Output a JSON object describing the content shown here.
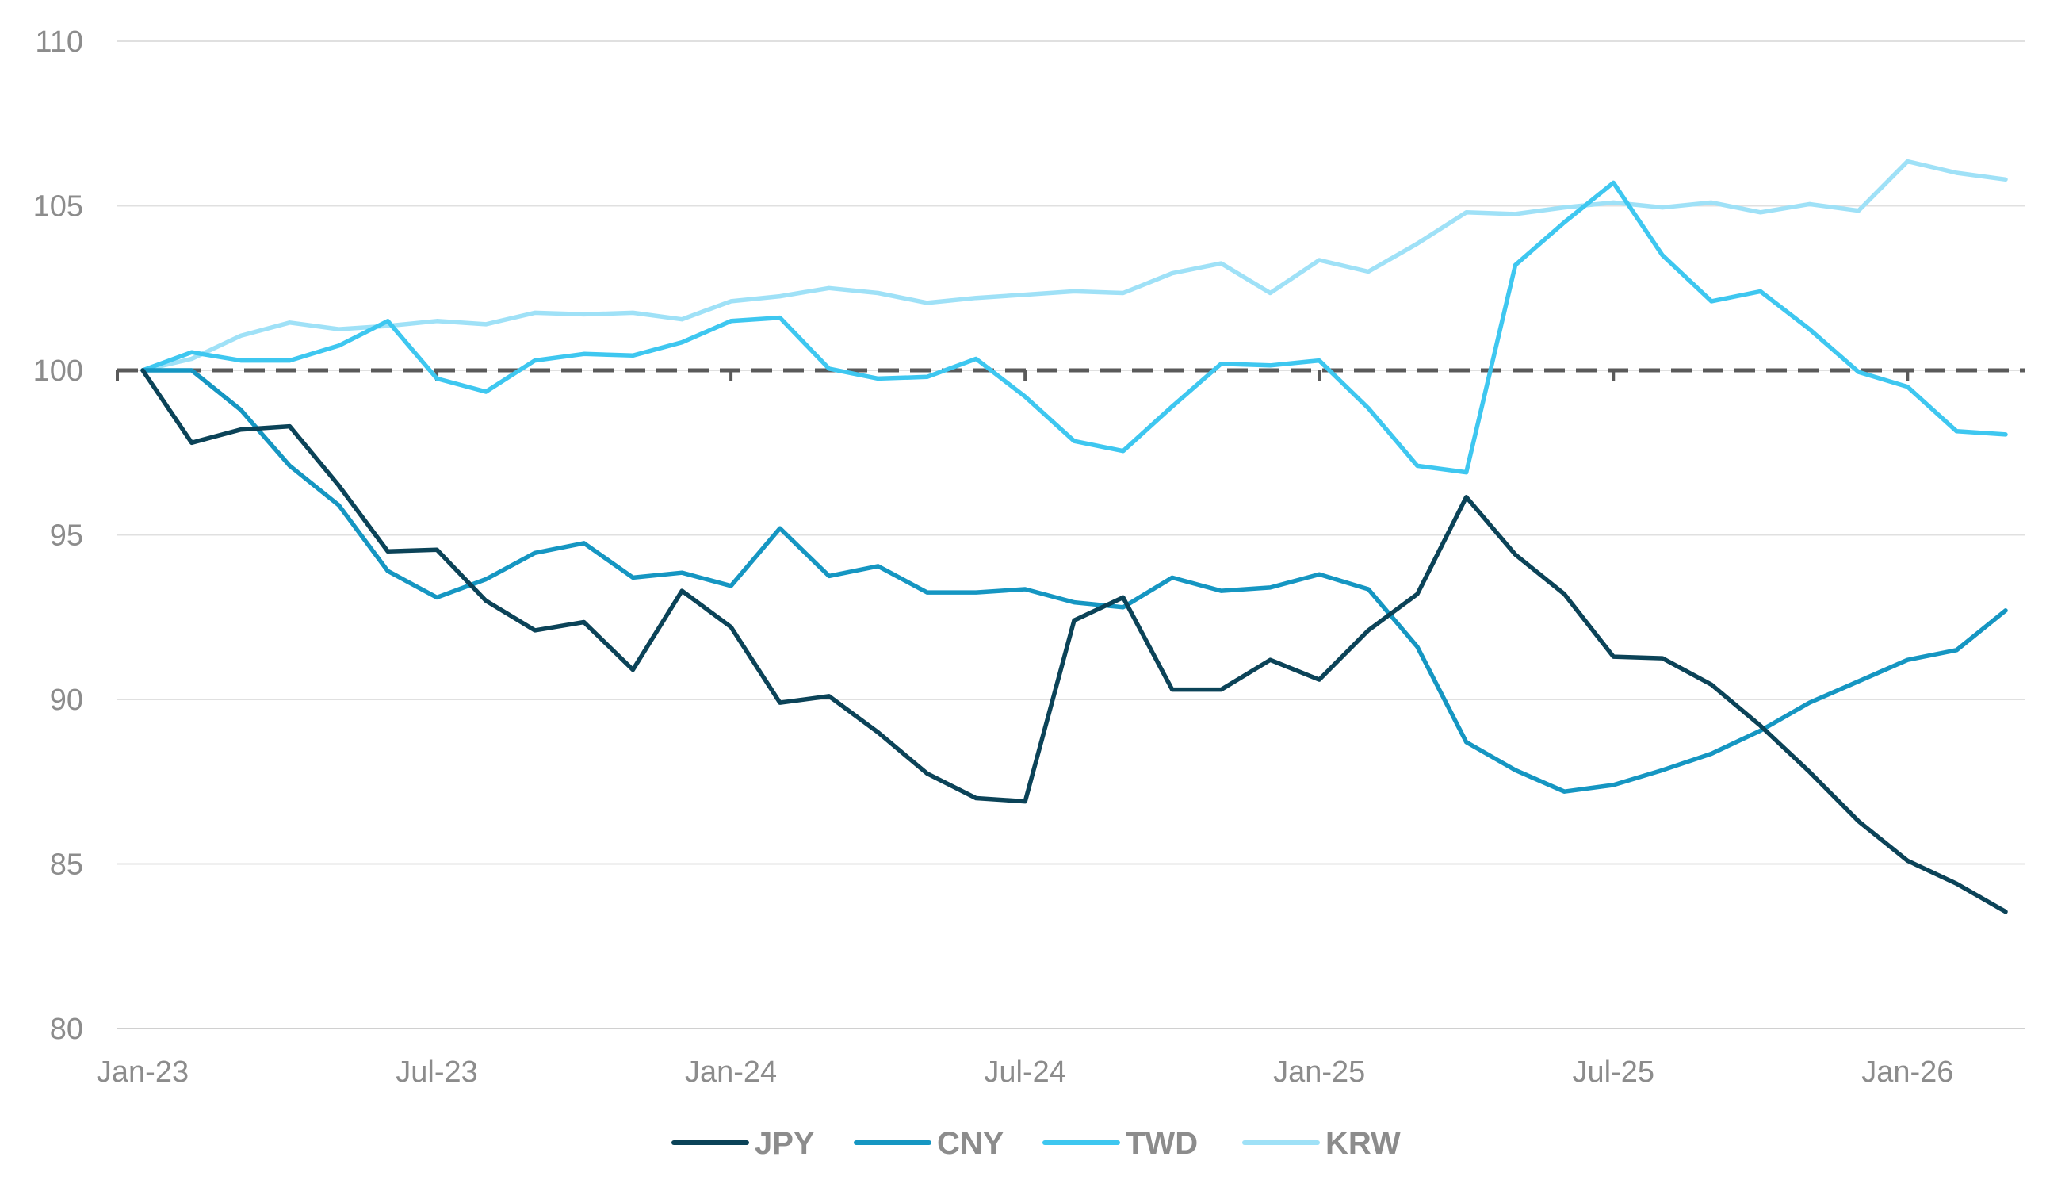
{
  "chart_data": {
    "type": "line",
    "title": "",
    "xlabel": "",
    "ylabel": "",
    "ylim": [
      80,
      110
    ],
    "yticks": [
      80,
      85,
      90,
      95,
      100,
      105,
      110
    ],
    "x_tick_labels": [
      "Jan-23",
      "Jul-23",
      "Jan-24",
      "Jul-24",
      "Jan-25",
      "Jul-25",
      "Jan-26"
    ],
    "x_tick_months": [
      0,
      6,
      12,
      18,
      24,
      30,
      36
    ],
    "n_months": 39,
    "baseline": 100,
    "grid": true,
    "legend_position": "bottom",
    "series": [
      {
        "name": "JPY",
        "color": "#0b4358",
        "values": [
          100,
          97.8,
          98.2,
          98.3,
          96.5,
          94.5,
          94.55,
          93.0,
          92.1,
          92.35,
          90.9,
          93.3,
          92.2,
          89.9,
          90.1,
          89.0,
          87.75,
          87.0,
          86.9,
          92.4,
          93.1,
          90.3,
          90.3,
          91.2,
          90.6,
          92.1,
          93.2,
          96.15,
          94.4,
          93.2,
          91.3,
          91.25,
          90.45,
          89.2,
          87.8,
          86.3,
          85.1,
          84.4,
          83.55
        ]
      },
      {
        "name": "CNY",
        "color": "#1596c2",
        "values": [
          100,
          100.0,
          98.8,
          97.1,
          95.9,
          93.9,
          93.1,
          93.65,
          94.45,
          94.75,
          93.7,
          93.85,
          93.45,
          95.2,
          93.75,
          94.05,
          93.25,
          93.25,
          93.35,
          92.95,
          92.8,
          93.7,
          93.3,
          93.4,
          93.8,
          93.35,
          91.6,
          88.7,
          87.85,
          87.2,
          87.4,
          87.85,
          88.35,
          89.05,
          89.9,
          90.55,
          91.2,
          91.5,
          92.7
        ]
      },
      {
        "name": "TWD",
        "color": "#3ec7f0",
        "values": [
          100,
          100.55,
          100.3,
          100.3,
          100.75,
          101.5,
          99.75,
          99.35,
          100.3,
          100.5,
          100.45,
          100.85,
          101.5,
          101.6,
          100.05,
          99.75,
          99.8,
          100.35,
          99.2,
          97.85,
          97.55,
          98.9,
          100.2,
          100.15,
          100.3,
          98.85,
          97.1,
          96.9,
          103.2,
          104.5,
          105.7,
          103.5,
          102.1,
          102.4,
          101.25,
          99.95,
          99.5,
          98.15,
          98.05
        ]
      },
      {
        "name": "KRW",
        "color": "#9fe1f7",
        "values": [
          100,
          100.35,
          101.05,
          101.45,
          101.25,
          101.35,
          101.5,
          101.4,
          101.75,
          101.7,
          101.75,
          101.55,
          102.1,
          102.25,
          102.5,
          102.35,
          102.05,
          102.2,
          102.3,
          102.4,
          102.35,
          102.95,
          103.25,
          102.35,
          103.35,
          103.0,
          103.85,
          104.8,
          104.75,
          104.95,
          105.1,
          104.95,
          105.1,
          104.8,
          105.05,
          104.85,
          106.35,
          106.0,
          105.8
        ]
      }
    ]
  }
}
